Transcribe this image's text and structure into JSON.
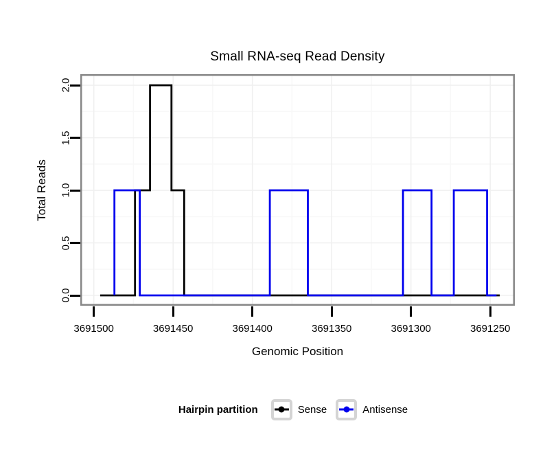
{
  "chart_data": {
    "type": "line",
    "title": "Small RNA-seq Read Density",
    "xlabel": "Genomic Position",
    "ylabel": "Total Reads",
    "x_axis": {
      "reversed": true,
      "domain": [
        3691508.5,
        3691234.5
      ],
      "ticks": [
        3691500,
        3691450,
        3691400,
        3691350,
        3691300,
        3691250
      ]
    },
    "y_axis": {
      "domain": [
        -0.098,
        2.105
      ],
      "ticks": [
        {
          "v": 0.0,
          "label": "0.0"
        },
        {
          "v": 0.5,
          "label": "0.5"
        },
        {
          "v": 1.0,
          "label": "1.0"
        },
        {
          "v": 1.5,
          "label": "1.5"
        },
        {
          "v": 2.0,
          "label": "2.0"
        }
      ]
    },
    "grid": {
      "show_major": true,
      "show_minor": true,
      "major_color": "#f0f0f0",
      "minor_color": "#f8f8f8"
    },
    "panel_border_color": "#878787",
    "series": [
      {
        "name": "Sense",
        "color": "#000000",
        "points": [
          [
            3691496,
            0
          ],
          [
            3691474,
            0
          ],
          [
            3691474,
            1
          ],
          [
            3691464.5,
            1
          ],
          [
            3691464.5,
            2
          ],
          [
            3691451,
            2
          ],
          [
            3691451,
            1
          ],
          [
            3691443,
            1
          ],
          [
            3691443,
            0
          ],
          [
            3691244,
            0
          ]
        ]
      },
      {
        "name": "Antisense",
        "color": "#0000ee",
        "points": [
          [
            3691487,
            0
          ],
          [
            3691487,
            1
          ],
          [
            3691471,
            1
          ],
          [
            3691471,
            0
          ],
          [
            3691389,
            0
          ],
          [
            3691389,
            1
          ],
          [
            3691365,
            1
          ],
          [
            3691365,
            0
          ],
          [
            3691305,
            0
          ],
          [
            3691305,
            1
          ],
          [
            3691287,
            1
          ],
          [
            3691287,
            0
          ],
          [
            3691273,
            0
          ],
          [
            3691273,
            1
          ],
          [
            3691252,
            1
          ],
          [
            3691252,
            0
          ],
          [
            3691246,
            0
          ]
        ]
      }
    ]
  },
  "legend": {
    "title": "Hairpin partition",
    "entries": [
      {
        "label": "Sense",
        "color": "#000000"
      },
      {
        "label": "Antisense",
        "color": "#0000ee"
      }
    ]
  }
}
